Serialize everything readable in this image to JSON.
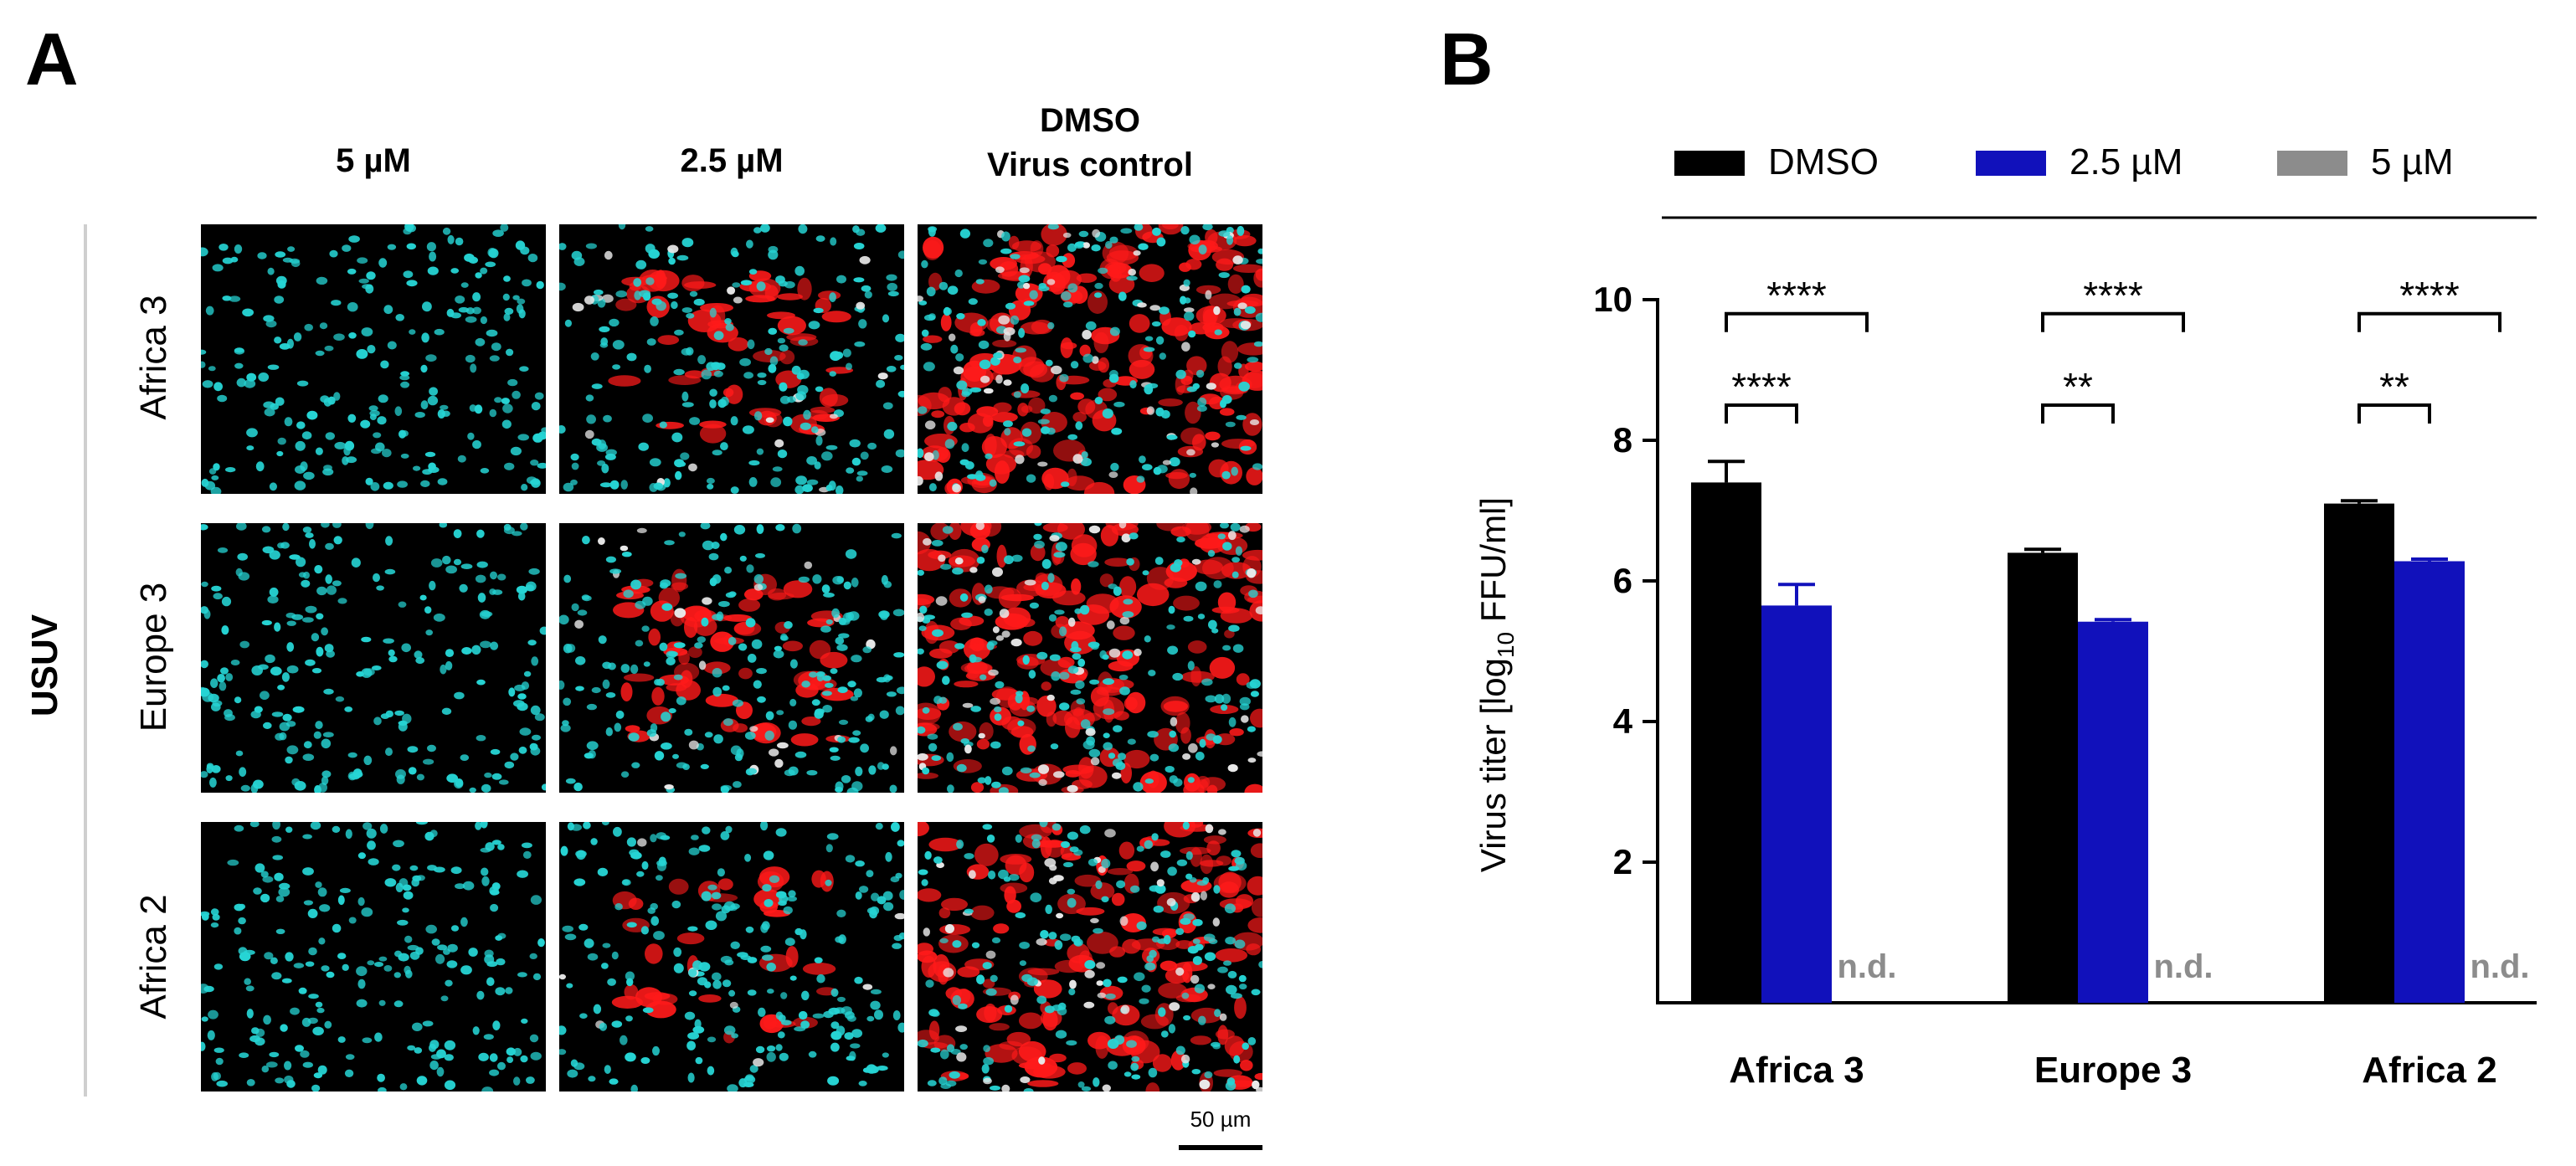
{
  "panel_a": {
    "letter": "A",
    "columns": [
      "5 µM",
      "2.5 µM",
      "DMSO",
      "Virus control"
    ],
    "group_label": "USUV",
    "rows": [
      "Africa 3",
      "Europe 3",
      "Africa 2"
    ],
    "scale_bar": "50 µm",
    "colors": {
      "nuclei": "#26d4d4",
      "virus": "#ff1a1a",
      "background": "#000000"
    },
    "infection_level": [
      [
        0,
        0.25,
        0.9
      ],
      [
        0,
        0.3,
        0.85
      ],
      [
        0,
        0.15,
        0.75
      ]
    ]
  },
  "panel_b": {
    "letter": "B",
    "ylabel_main": "Virus titer [log",
    "ylabel_sub": "10",
    "ylabel_tail": " FFU/ml]",
    "nd_label": "n.d.",
    "sig": {
      "africa3": [
        "****",
        "****"
      ],
      "europe3": [
        "****",
        "**"
      ],
      "africa2": [
        "****",
        "**"
      ]
    }
  },
  "chart_data": {
    "type": "bar",
    "categories": [
      "Africa 3",
      "Europe 3",
      "Africa 2"
    ],
    "series": [
      {
        "name": "DMSO",
        "color": "#000000",
        "values": [
          7.4,
          6.4,
          7.1
        ],
        "errors": [
          0.3,
          0.05,
          0.04
        ]
      },
      {
        "name": "2.5 µM",
        "color": "#1111bb",
        "values": [
          5.65,
          5.42,
          6.28
        ],
        "errors": [
          0.3,
          0.03,
          0.03
        ]
      },
      {
        "name": "5 µM",
        "color": "#8c8c8c",
        "values": [
          null,
          null,
          null
        ],
        "errors": [
          null,
          null,
          null
        ]
      }
    ],
    "yticks": [
      2,
      4,
      6,
      8,
      10
    ],
    "ylim": [
      0,
      10
    ],
    "legend": "top",
    "grid": false
  }
}
